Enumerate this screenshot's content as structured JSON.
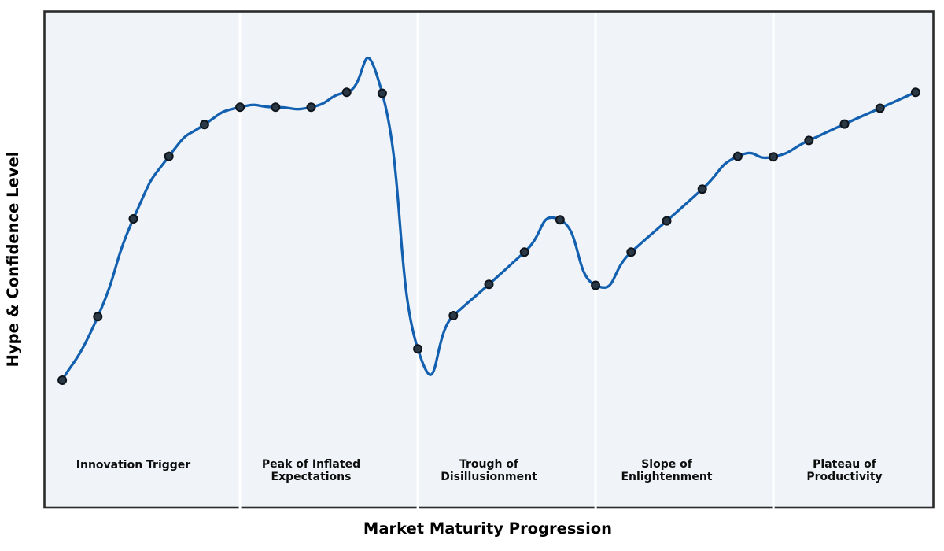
{
  "chart_data": {
    "type": "line",
    "title": "",
    "xlabel": "Market Maturity Progression",
    "ylabel": "Hype & Confidence Level",
    "x": [
      0,
      1,
      2,
      3,
      4,
      5,
      6,
      7,
      8,
      9,
      10,
      11,
      12,
      13,
      14,
      15,
      16,
      17,
      18,
      19,
      20,
      21,
      22,
      23,
      24
    ],
    "y": [
      25.7,
      38.5,
      58.2,
      70.8,
      77.2,
      80.7,
      80.7,
      80.7,
      83.7,
      83.5,
      32.0,
      38.7,
      45.0,
      51.5,
      58.0,
      44.8,
      51.5,
      57.8,
      64.2,
      70.8,
      70.7,
      74.0,
      77.3,
      80.5,
      83.7
    ],
    "xlim": [
      -0.5,
      24.5
    ],
    "ylim": [
      0,
      100
    ],
    "grid": false,
    "legend": null,
    "smoothing": "cubic-spline",
    "marker": "circle",
    "phases": [
      {
        "label_lines": [
          "Innovation Trigger"
        ],
        "x_start": -0.5,
        "x_end": 5,
        "label_x": 2
      },
      {
        "label_lines": [
          "Peak of Inflated",
          "Expectations"
        ],
        "x_start": 5,
        "x_end": 10,
        "label_x": 7
      },
      {
        "label_lines": [
          "Trough of",
          "Disillusionment"
        ],
        "x_start": 10,
        "x_end": 15,
        "label_x": 12
      },
      {
        "label_lines": [
          "Slope of",
          "Enlightenment"
        ],
        "x_start": 15,
        "x_end": 20,
        "label_x": 17
      },
      {
        "label_lines": [
          "Plateau of",
          "Productivity"
        ],
        "x_start": 20,
        "x_end": 24.5,
        "label_x": 22
      }
    ],
    "colors": {
      "line": "#1360b0",
      "marker_fill": "#2b3845",
      "marker_edge": "#0e141b",
      "plot_background": "#f0f4f8",
      "phase_divider": "#ffffff",
      "border": "#2b2b2b",
      "text": "#000000"
    }
  }
}
